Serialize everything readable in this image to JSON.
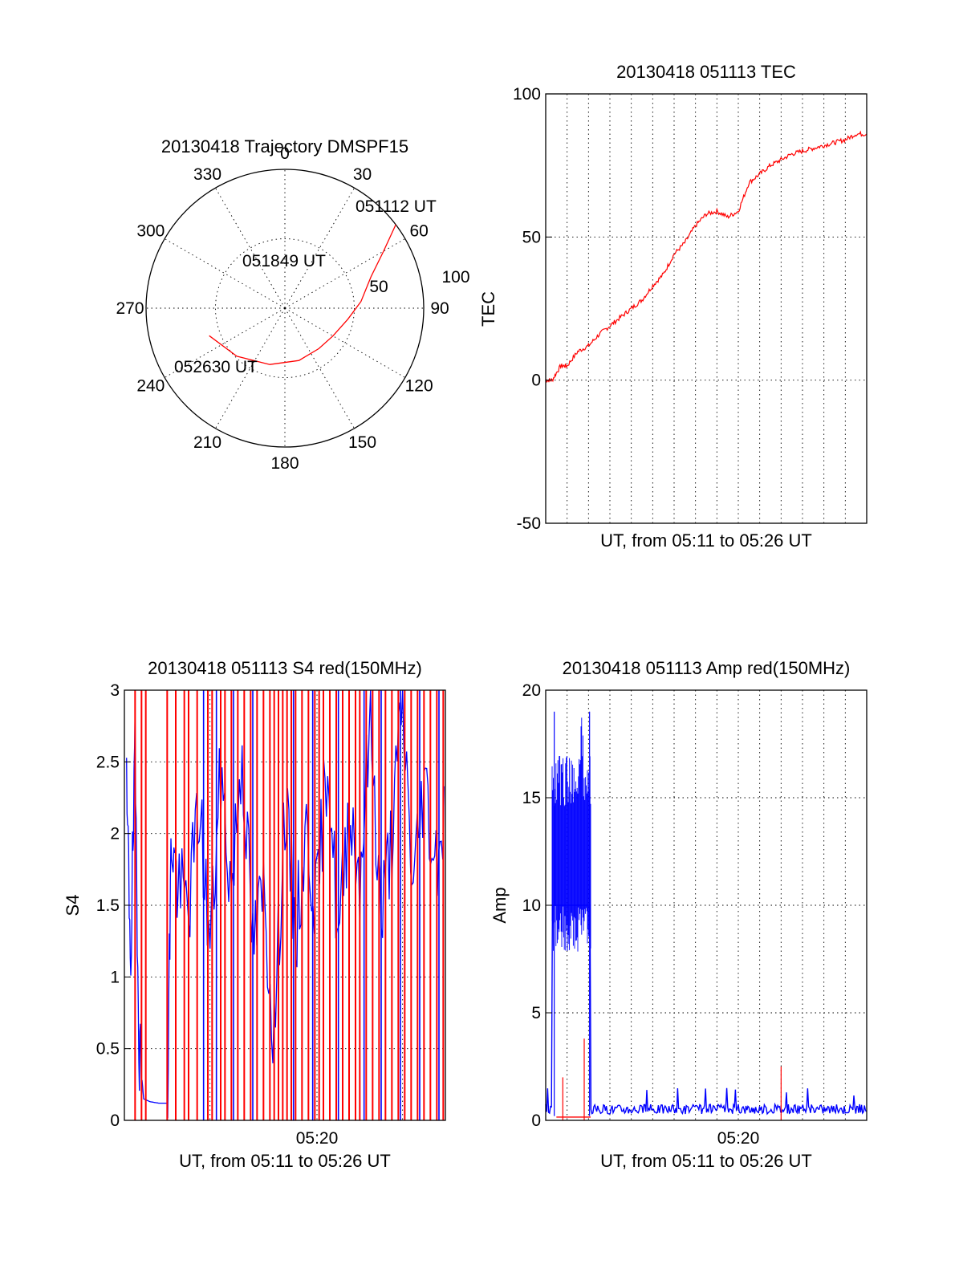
{
  "chart_data": [
    {
      "type": "polar",
      "title": "20130418 Trajectory DMSPF15",
      "angle_ticks": [
        "0",
        "30",
        "60",
        "90",
        "120",
        "150",
        "180",
        "210",
        "240",
        "270",
        "300",
        "330"
      ],
      "radial_ticks": [
        "50",
        "100"
      ],
      "rmax": 100,
      "annotations": [
        "051112 UT",
        "051849 UT",
        "052630 UT"
      ],
      "colors": {
        "trajectory": "#ff0000"
      },
      "trajectory": [
        [
          53,
          100
        ],
        [
          60,
          82
        ],
        [
          70,
          66
        ],
        [
          85,
          55
        ],
        [
          100,
          46
        ],
        [
          120,
          40
        ],
        [
          140,
          38
        ],
        [
          165,
          39
        ],
        [
          195,
          42
        ],
        [
          225,
          49
        ],
        [
          250,
          58
        ]
      ]
    },
    {
      "type": "line",
      "title": "20130418 051113 TEC",
      "xlabel": "UT, from 05:11 to 05:26 UT",
      "ylabel": "TEC",
      "xlim": [
        0,
        15
      ],
      "ylim": [
        -50,
        100
      ],
      "yticks": [
        "100",
        "50",
        "0",
        "-50"
      ],
      "grid": true,
      "series": [
        {
          "color": "#ff0000",
          "x": [
            0,
            0.3,
            0.7,
            1.0,
            1.5,
            2.0,
            2.5,
            3.0,
            3.5,
            4.0,
            4.5,
            5.0,
            5.5,
            6.0,
            6.5,
            7.0,
            7.5,
            8.0,
            8.5,
            9.0,
            9.5,
            10.0,
            10.5,
            11.0,
            11.5,
            12.0,
            12.5,
            13.0,
            13.5,
            14.0,
            14.5,
            15.0
          ],
          "y": [
            0,
            0,
            5,
            5,
            10,
            12,
            16,
            19,
            22,
            25,
            28,
            33,
            37,
            44,
            48,
            54,
            58,
            59,
            57,
            59,
            69,
            72,
            75,
            77,
            79,
            80,
            81,
            82,
            83,
            84,
            86,
            86
          ]
        }
      ]
    },
    {
      "type": "line",
      "title": "20130418 051113 S4 red(150MHz)",
      "xlabel": "UT, from 05:11 to 05:26 UT",
      "ylabel": "S4",
      "xlim": [
        0,
        15
      ],
      "ylim": [
        0,
        3
      ],
      "xtick_labels": [
        "05:20"
      ],
      "yticks": [
        "3",
        "2.5",
        "2",
        "1.5",
        "1",
        "0.5",
        "0"
      ],
      "grid": true,
      "series": [
        {
          "color": "#0000ff",
          "x": [
            0.1,
            0.3,
            0.5,
            0.7,
            0.9,
            1.2,
            1.6,
            2.0,
            2.2,
            2.5,
            3.0,
            3.5,
            4.0,
            4.5,
            5.0,
            5.5,
            6.0,
            6.5,
            7.0,
            7.5,
            8.0,
            8.5,
            9.0,
            9.5,
            10.0,
            10.5,
            11.0,
            11.5,
            12.0,
            12.5,
            13.0,
            13.5,
            14.0,
            14.5,
            15.0
          ],
          "y": [
            2.2,
            1.2,
            2.5,
            0.5,
            0.15,
            0.13,
            0.12,
            0.12,
            2.0,
            1.6,
            1.5,
            2.2,
            1.2,
            2.4,
            1.6,
            2.6,
            1.2,
            1.6,
            0.6,
            2.2,
            1.3,
            2.0,
            1.5,
            2.6,
            1.2,
            2.2,
            1.7,
            2.8,
            1.4,
            2.0,
            2.9,
            1.6,
            2.4,
            1.8,
            2.2
          ]
        }
      ],
      "red_spike_positions": [
        0.5,
        0.8,
        1.0,
        2.0,
        2.4,
        2.8,
        3.0,
        3.4,
        3.9,
        4.1,
        4.5,
        4.7,
        5.0,
        5.3,
        5.6,
        5.9,
        6.2,
        6.5,
        6.8,
        7.0,
        7.2,
        7.4,
        7.6,
        7.8,
        8.0,
        8.3,
        8.6,
        8.9,
        9.1,
        9.3,
        9.6,
        9.9,
        10.2,
        10.5,
        10.8,
        11.0,
        11.3,
        11.6,
        11.9,
        12.2,
        12.5,
        12.8,
        13.1,
        13.4,
        13.7,
        14.0,
        14.3,
        14.6,
        14.9
      ],
      "blue_spike_positions": [
        3.7,
        4.3,
        5.1,
        6.0,
        7.9,
        8.8,
        10.0,
        11.2,
        12.0,
        12.9,
        13.8,
        14.7
      ]
    },
    {
      "type": "line",
      "title": "20130418 051113 Amp red(150MHz)",
      "xlabel": "UT, from 05:11 to 05:26 UT",
      "ylabel": "Amp",
      "xlim": [
        0,
        15
      ],
      "ylim": [
        0,
        20
      ],
      "xtick_labels": [
        "05:20"
      ],
      "yticks": [
        "20",
        "15",
        "10",
        "5",
        "0"
      ],
      "grid": true,
      "blue_burst": {
        "x_start": 0.3,
        "x_end": 2.1,
        "y_low": 10,
        "y_high": 17,
        "y_peak": 19
      },
      "blue_baseline_level": 0.3,
      "red_spikes": [
        [
          0.8,
          2.0
        ],
        [
          1.8,
          3.8
        ],
        [
          11.0,
          2.5
        ]
      ],
      "colors": {
        "blue": "#0000ff",
        "red": "#ff0000"
      }
    }
  ]
}
